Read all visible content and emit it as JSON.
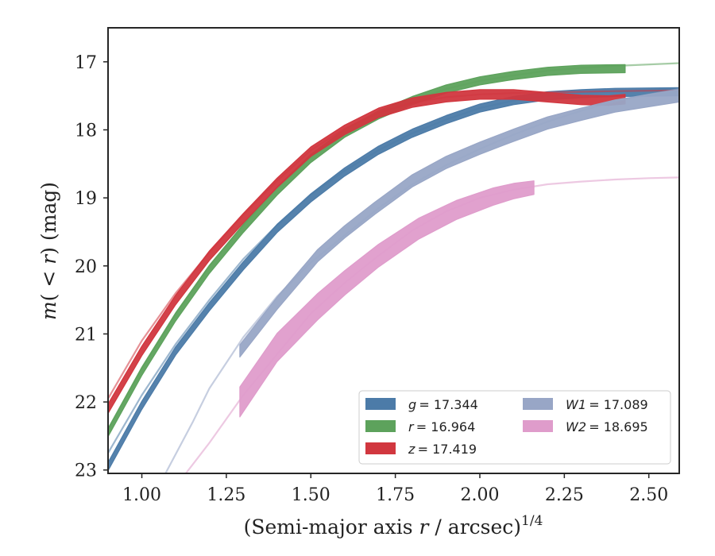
{
  "chart_data": {
    "type": "line",
    "xlabel": "(Semi-major axis r / arcsec)^1/4",
    "xlabel_parts": {
      "pre": "(Semi-major axis ",
      "var": "r",
      "post": " / arcsec)",
      "sup": "1/4"
    },
    "ylabel": "m(< r) (mag)",
    "ylabel_parts": {
      "pre": "m",
      "mid": "( < ",
      "var": "r",
      "post": ") (mag)"
    },
    "xlim": [
      0.9,
      2.59
    ],
    "ylim": [
      23.05,
      16.5
    ],
    "y_inverted": true,
    "xticks": [
      "1.00",
      "1.25",
      "1.50",
      "1.75",
      "2.00",
      "2.25",
      "2.50"
    ],
    "xtick_values": [
      1.0,
      1.25,
      1.5,
      1.75,
      2.0,
      2.25,
      2.5
    ],
    "yticks": [
      "17",
      "18",
      "19",
      "20",
      "21",
      "22",
      "23"
    ],
    "ytick_values": [
      17,
      18,
      19,
      20,
      21,
      22,
      23
    ],
    "grid": false,
    "legend_position": "lower-right",
    "series": [
      {
        "name": "g = 17.344",
        "legend_var": "g",
        "legend_value": "= 17.344",
        "color": "#4c7ba8",
        "model": {
          "x": [
            0.9,
            1.0,
            1.1,
            1.2,
            1.3,
            1.4,
            1.5,
            1.6,
            1.7,
            1.8,
            1.9,
            2.0,
            2.1,
            2.2,
            2.3,
            2.4,
            2.59
          ],
          "y": [
            22.75,
            21.9,
            21.15,
            20.5,
            19.9,
            19.4,
            18.95,
            18.6,
            18.3,
            18.05,
            17.85,
            17.68,
            17.57,
            17.5,
            17.46,
            17.44,
            17.4
          ]
        },
        "data": {
          "x": [
            0.9,
            1.0,
            1.1,
            1.2,
            1.3,
            1.4,
            1.5,
            1.6,
            1.7,
            1.8,
            1.9,
            2.0,
            2.1,
            2.2,
            2.3,
            2.4,
            2.59
          ],
          "y": [
            22.95,
            22.05,
            21.25,
            20.6,
            20.0,
            19.45,
            19.0,
            18.62,
            18.3,
            18.05,
            17.85,
            17.68,
            17.57,
            17.5,
            17.47,
            17.45,
            17.44
          ],
          "band": 0.06
        }
      },
      {
        "name": "r = 16.964",
        "legend_var": "r",
        "legend_value": "= 16.964",
        "color": "#5da25c",
        "model": {
          "x": [
            0.9,
            1.0,
            1.1,
            1.2,
            1.3,
            1.4,
            1.5,
            1.6,
            1.7,
            1.8,
            1.9,
            2.0,
            2.1,
            2.2,
            2.3,
            2.4,
            2.59
          ],
          "y": [
            22.4,
            21.5,
            20.7,
            20.0,
            19.4,
            18.85,
            18.4,
            18.05,
            17.78,
            17.57,
            17.4,
            17.28,
            17.2,
            17.13,
            17.09,
            17.06,
            17.02
          ]
        },
        "data": {
          "x": [
            0.9,
            1.0,
            1.1,
            1.2,
            1.3,
            1.4,
            1.5,
            1.6,
            1.7,
            1.8,
            1.9,
            2.0,
            2.1,
            2.2,
            2.3,
            2.43
          ],
          "y": [
            22.45,
            21.55,
            20.75,
            20.05,
            19.45,
            18.9,
            18.42,
            18.05,
            17.78,
            17.57,
            17.4,
            17.28,
            17.2,
            17.14,
            17.11,
            17.1
          ],
          "band": 0.06
        }
      },
      {
        "name": "z = 17.419",
        "legend_var": "z",
        "legend_value": "= 17.419",
        "color": "#d1373f",
        "model": {
          "x": [
            0.9,
            1.0,
            1.1,
            1.2,
            1.3,
            1.4,
            1.5,
            1.6,
            1.7,
            1.8,
            1.9,
            2.0,
            2.1,
            2.2,
            2.3,
            2.4,
            2.59
          ],
          "y": [
            21.95,
            21.1,
            20.4,
            19.8,
            19.25,
            18.75,
            18.3,
            17.98,
            17.75,
            17.6,
            17.52,
            17.48,
            17.46,
            17.45,
            17.44,
            17.43,
            17.42
          ]
        },
        "data": {
          "x": [
            0.9,
            1.0,
            1.1,
            1.2,
            1.3,
            1.4,
            1.5,
            1.6,
            1.7,
            1.8,
            1.9,
            2.0,
            2.1,
            2.2,
            2.3,
            2.38,
            2.43
          ],
          "y": [
            22.1,
            21.25,
            20.5,
            19.85,
            19.3,
            18.78,
            18.32,
            18.0,
            17.75,
            17.6,
            17.52,
            17.48,
            17.48,
            17.52,
            17.56,
            17.57,
            17.55
          ],
          "band": 0.07
        }
      },
      {
        "name": "W1 = 17.089",
        "legend_var": "W1",
        "legend_value": "= 17.089",
        "color": "#98a6c6",
        "model": {
          "x": [
            1.07,
            1.15,
            1.2,
            1.3,
            1.4,
            1.5,
            1.6,
            1.7,
            1.8,
            1.9,
            2.0,
            2.1,
            2.2,
            2.3,
            2.4,
            2.5,
            2.59
          ],
          "y": [
            23.05,
            22.3,
            21.8,
            21.05,
            20.45,
            19.95,
            19.55,
            19.15,
            18.8,
            18.52,
            18.28,
            18.07,
            17.88,
            17.72,
            17.58,
            17.48,
            17.4
          ]
        },
        "data": {
          "x": [
            1.29,
            1.4,
            1.52,
            1.6,
            1.69,
            1.8,
            1.9,
            2.0,
            2.1,
            2.2,
            2.3,
            2.4,
            2.5,
            2.59
          ],
          "y": [
            21.25,
            20.55,
            19.85,
            19.5,
            19.15,
            18.75,
            18.48,
            18.27,
            18.08,
            17.9,
            17.77,
            17.65,
            17.57,
            17.5
          ],
          "band": 0.09
        }
      },
      {
        "name": "W2 = 18.695",
        "legend_var": "W2",
        "legend_value": "= 18.695",
        "color": "#df9ccb",
        "model": {
          "x": [
            1.13,
            1.2,
            1.3,
            1.4,
            1.5,
            1.6,
            1.7,
            1.8,
            1.9,
            2.0,
            2.1,
            2.2,
            2.3,
            2.4,
            2.5,
            2.59
          ],
          "y": [
            23.05,
            22.6,
            21.9,
            21.3,
            20.7,
            20.25,
            19.85,
            19.48,
            19.2,
            19.0,
            18.88,
            18.8,
            18.76,
            18.73,
            18.71,
            18.7
          ]
        },
        "data": {
          "x": [
            1.29,
            1.4,
            1.52,
            1.6,
            1.7,
            1.82,
            1.93,
            2.04,
            2.1,
            2.16
          ],
          "y": [
            22.0,
            21.2,
            20.6,
            20.25,
            19.85,
            19.45,
            19.18,
            18.98,
            18.9,
            18.85
          ],
          "band_start": 0.22,
          "band_end": 0.1
        }
      }
    ]
  }
}
